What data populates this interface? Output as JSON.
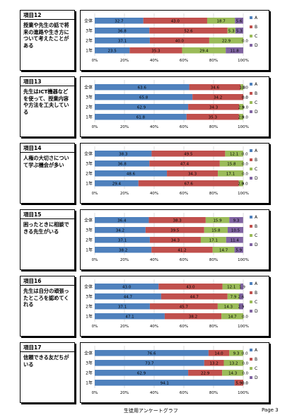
{
  "legend_labels": [
    "A",
    "B",
    "C",
    "D"
  ],
  "colors": [
    "#4f81bd",
    "#c0504d",
    "#9bbb59",
    "#8064a2"
  ],
  "footer": {
    "title": "生徒用アンケートグラフ",
    "page": "Page 3"
  },
  "chart_data": [
    {
      "type": "bar",
      "item": "項目12",
      "question": "授業や先生の話で将来の進路や生き方について考えたことがある",
      "categories": [
        "全体",
        "3年",
        "2年",
        "1年"
      ],
      "series": [
        {
          "name": "A",
          "values": [
            32.7,
            36.8,
            37.1,
            23.5
          ]
        },
        {
          "name": "B",
          "values": [
            43.0,
            52.6,
            40.0,
            35.3
          ]
        },
        {
          "name": "C",
          "values": [
            18.7,
            5.3,
            22.9,
            29.4
          ]
        },
        {
          "name": "D",
          "values": [
            5.6,
            5.3,
            0.0,
            11.8
          ]
        }
      ],
      "xticks": [
        "0%",
        "20%",
        "40%",
        "60%",
        "80%",
        "100%"
      ],
      "xlim": [
        0,
        100
      ]
    },
    {
      "type": "bar",
      "item": "項目13",
      "question": "先生はICT機器などを使って、授業内容や方法を工夫している",
      "categories": [
        "全体",
        "3年",
        "2年",
        "1年"
      ],
      "series": [
        {
          "name": "A",
          "values": [
            63.6,
            65.8,
            62.9,
            61.8
          ]
        },
        {
          "name": "B",
          "values": [
            34.6,
            34.2,
            34.3,
            35.3
          ]
        },
        {
          "name": "C",
          "values": [
            1.8,
            0.0,
            2.9,
            2.9
          ]
        },
        {
          "name": "D",
          "values": [
            0.0,
            0.0,
            0.0,
            0.0
          ]
        }
      ],
      "xticks": [
        "0%",
        "20%",
        "40%",
        "60%",
        "80%",
        "100%"
      ],
      "xlim": [
        0,
        100
      ]
    },
    {
      "type": "bar",
      "item": "項目14",
      "question": "人権の大切さについて学ぶ機会が多い",
      "categories": [
        "全体",
        "3年",
        "2年",
        "1年"
      ],
      "series": [
        {
          "name": "A",
          "values": [
            38.3,
            36.8,
            48.6,
            29.4
          ]
        },
        {
          "name": "B",
          "values": [
            49.5,
            47.4,
            34.3,
            67.6
          ]
        },
        {
          "name": "C",
          "values": [
            12.1,
            15.8,
            17.1,
            2.9
          ]
        },
        {
          "name": "D",
          "values": [
            0.0,
            0.0,
            0.0,
            0.0
          ]
        }
      ],
      "xticks": [
        "0%",
        "20%",
        "40%",
        "60%",
        "80%",
        "100%"
      ],
      "xlim": [
        0,
        100
      ]
    },
    {
      "type": "bar",
      "item": "項目15",
      "question": "困ったときに相談できる先生がいる",
      "categories": [
        "全体",
        "3年",
        "2年",
        "1年"
      ],
      "series": [
        {
          "name": "A",
          "values": [
            36.4,
            34.2,
            37.1,
            38.2
          ]
        },
        {
          "name": "B",
          "values": [
            38.3,
            39.5,
            34.3,
            41.2
          ]
        },
        {
          "name": "C",
          "values": [
            15.9,
            15.8,
            17.1,
            14.7
          ]
        },
        {
          "name": "D",
          "values": [
            9.3,
            10.5,
            11.4,
            5.9
          ]
        }
      ],
      "xticks": [
        "0%",
        "20%",
        "40%",
        "60%",
        "80%",
        "100%"
      ],
      "xlim": [
        0,
        100
      ]
    },
    {
      "type": "bar",
      "item": "項目16",
      "question": "先生は自分の頑張ったところを認めてくれる",
      "categories": [
        "全体",
        "3年",
        "2年",
        "1年"
      ],
      "series": [
        {
          "name": "A",
          "values": [
            43.0,
            44.7,
            37.1,
            47.1
          ]
        },
        {
          "name": "B",
          "values": [
            43.0,
            44.7,
            45.7,
            38.2
          ]
        },
        {
          "name": "C",
          "values": [
            12.1,
            7.9,
            14.3,
            14.7
          ]
        },
        {
          "name": "D",
          "values": [
            1.9,
            2.6,
            2.9,
            0.0
          ]
        }
      ],
      "xticks": [
        "0%",
        "20%",
        "40%",
        "60%",
        "80%",
        "100%"
      ],
      "xlim": [
        0,
        100
      ]
    },
    {
      "type": "bar",
      "item": "項目17",
      "question": "信頼できる友だちがいる",
      "categories": [
        "全体",
        "3年",
        "2年",
        "1年"
      ],
      "series": [
        {
          "name": "A",
          "values": [
            76.6,
            73.7,
            62.9,
            94.1
          ]
        },
        {
          "name": "B",
          "values": [
            14.0,
            13.2,
            22.9,
            5.9
          ]
        },
        {
          "name": "C",
          "values": [
            9.3,
            13.2,
            14.3,
            0.0
          ]
        },
        {
          "name": "D",
          "values": [
            0.0,
            0.0,
            0.0,
            0.0
          ]
        }
      ],
      "xticks": [
        "0%",
        "20%",
        "40%",
        "60%",
        "80%",
        "100%"
      ],
      "xlim": [
        0,
        100
      ]
    }
  ]
}
